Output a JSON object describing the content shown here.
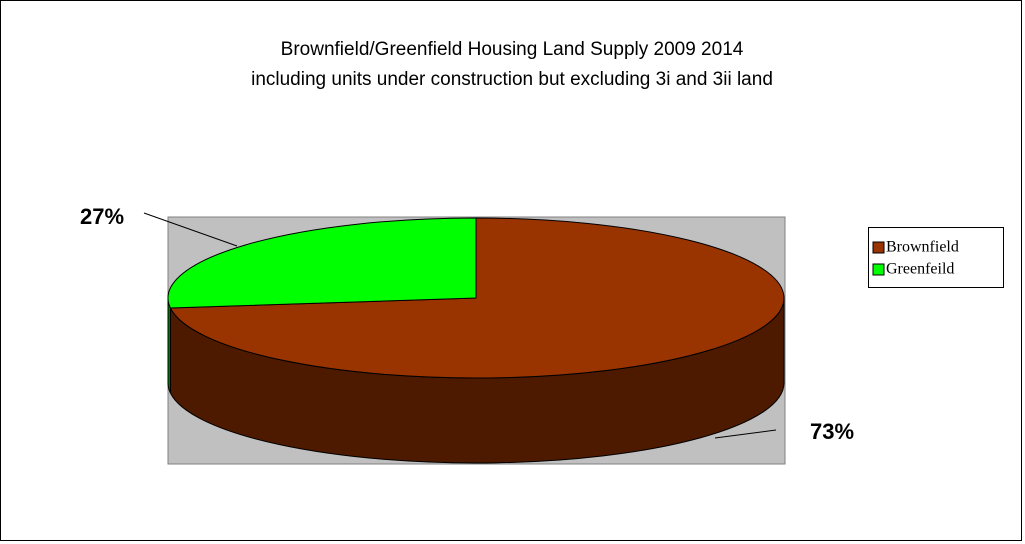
{
  "chart_data": {
    "type": "pie3d",
    "title": "Brownfield/Greenfield Housing Land Supply 2009 2014",
    "subtitle": "including units under construction but excluding 3i and 3ii land",
    "categories": [
      "Brownfield",
      "Greenfeild"
    ],
    "values": [
      73,
      27
    ],
    "value_labels": [
      "73%",
      "27%"
    ],
    "colors": [
      "#993300",
      "#00ff00"
    ],
    "legend": "right"
  }
}
